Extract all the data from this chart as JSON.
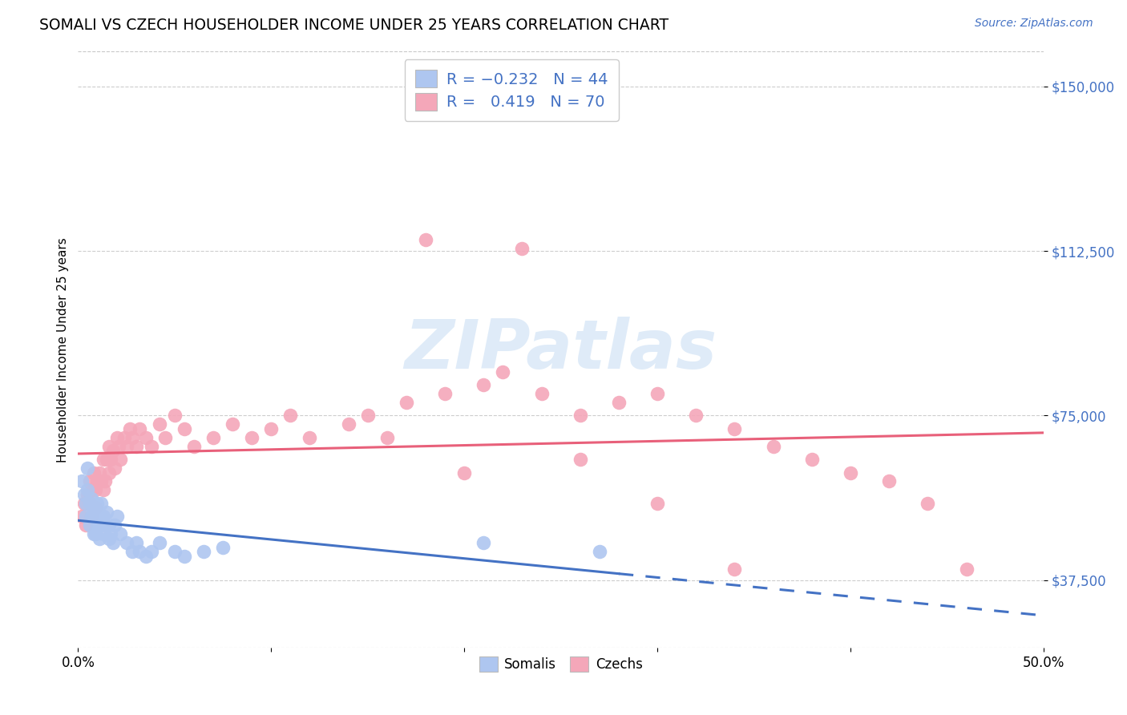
{
  "title": "SOMALI VS CZECH HOUSEHOLDER INCOME UNDER 25 YEARS CORRELATION CHART",
  "source": "Source: ZipAtlas.com",
  "ylabel": "Householder Income Under 25 years",
  "xmin": 0.0,
  "xmax": 0.5,
  "ymin": 22000,
  "ymax": 158000,
  "watermark": "ZIPatlas",
  "somali_color": "#aec6f0",
  "czech_color": "#f4a7b9",
  "somali_line_color": "#4472c4",
  "czech_line_color": "#e8607a",
  "background_color": "#ffffff",
  "grid_color": "#c8c8c8",
  "somali_x": [
    0.002,
    0.003,
    0.004,
    0.004,
    0.005,
    0.005,
    0.006,
    0.006,
    0.007,
    0.007,
    0.008,
    0.008,
    0.009,
    0.009,
    0.01,
    0.01,
    0.011,
    0.011,
    0.012,
    0.012,
    0.013,
    0.013,
    0.014,
    0.015,
    0.016,
    0.016,
    0.017,
    0.018,
    0.019,
    0.02,
    0.022,
    0.025,
    0.028,
    0.03,
    0.032,
    0.035,
    0.038,
    0.042,
    0.05,
    0.055,
    0.065,
    0.075,
    0.21,
    0.27
  ],
  "somali_y": [
    60000,
    57000,
    55000,
    52000,
    63000,
    58000,
    55000,
    50000,
    56000,
    52000,
    54000,
    48000,
    52000,
    48000,
    55000,
    50000,
    52000,
    47000,
    55000,
    50000,
    52000,
    48000,
    50000,
    53000,
    50000,
    47000,
    48000,
    46000,
    50000,
    52000,
    48000,
    46000,
    44000,
    46000,
    44000,
    43000,
    44000,
    46000,
    44000,
    43000,
    44000,
    45000,
    46000,
    44000
  ],
  "czech_x": [
    0.002,
    0.003,
    0.004,
    0.005,
    0.006,
    0.006,
    0.007,
    0.007,
    0.008,
    0.009,
    0.009,
    0.01,
    0.011,
    0.012,
    0.013,
    0.013,
    0.014,
    0.015,
    0.016,
    0.016,
    0.017,
    0.018,
    0.019,
    0.02,
    0.021,
    0.022,
    0.024,
    0.025,
    0.027,
    0.028,
    0.03,
    0.032,
    0.035,
    0.038,
    0.042,
    0.045,
    0.05,
    0.055,
    0.06,
    0.07,
    0.08,
    0.09,
    0.1,
    0.11,
    0.12,
    0.14,
    0.15,
    0.17,
    0.19,
    0.21,
    0.22,
    0.24,
    0.26,
    0.28,
    0.3,
    0.32,
    0.34,
    0.36,
    0.38,
    0.4,
    0.42,
    0.44,
    0.46,
    0.34,
    0.26,
    0.3,
    0.2,
    0.16,
    0.18,
    0.23
  ],
  "czech_y": [
    52000,
    55000,
    50000,
    57000,
    55000,
    60000,
    58000,
    52000,
    62000,
    58000,
    54000,
    60000,
    62000,
    60000,
    65000,
    58000,
    60000,
    65000,
    62000,
    68000,
    65000,
    67000,
    63000,
    70000,
    68000,
    65000,
    70000,
    68000,
    72000,
    70000,
    68000,
    72000,
    70000,
    68000,
    73000,
    70000,
    75000,
    72000,
    68000,
    70000,
    73000,
    70000,
    72000,
    75000,
    70000,
    73000,
    75000,
    78000,
    80000,
    82000,
    85000,
    80000,
    75000,
    78000,
    80000,
    75000,
    72000,
    68000,
    65000,
    62000,
    60000,
    55000,
    40000,
    40000,
    65000,
    55000,
    62000,
    70000,
    115000,
    113000
  ]
}
